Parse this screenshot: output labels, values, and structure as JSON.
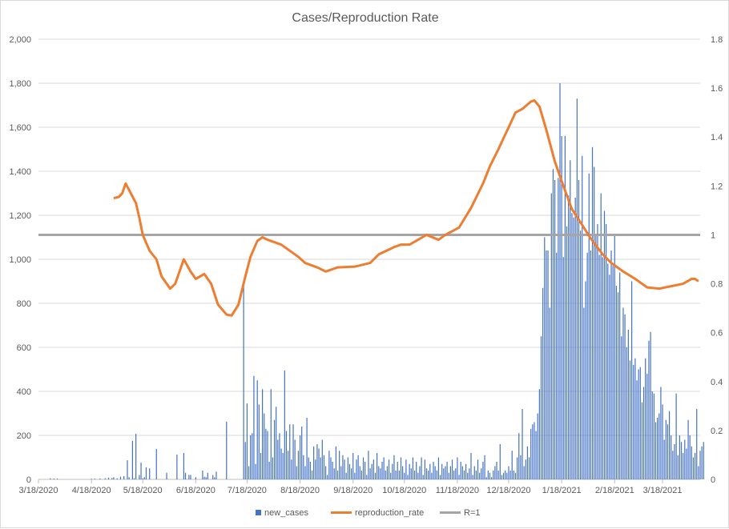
{
  "chart_data": {
    "type": "bar+line",
    "title": "Cases/Reproduction Rate",
    "x_start_date": "3/18/2020",
    "x_unit": "days since 3/18/2020",
    "x_ticks": [
      {
        "day": 0,
        "label": "3/18/2020"
      },
      {
        "day": 31,
        "label": "4/18/2020"
      },
      {
        "day": 61,
        "label": "5/18/2020"
      },
      {
        "day": 92,
        "label": "6/18/2020"
      },
      {
        "day": 122,
        "label": "7/18/2020"
      },
      {
        "day": 153,
        "label": "8/18/2020"
      },
      {
        "day": 184,
        "label": "9/18/2020"
      },
      {
        "day": 214,
        "label": "10/18/2020"
      },
      {
        "day": 245,
        "label": "11/18/2020"
      },
      {
        "day": 275,
        "label": "12/18/2020"
      },
      {
        "day": 306,
        "label": "1/18/2021"
      },
      {
        "day": 337,
        "label": "2/18/2021"
      },
      {
        "day": 365,
        "label": "3/18/2021"
      }
    ],
    "x_range": [
      0,
      387
    ],
    "y_left": {
      "range": [
        0,
        2000
      ],
      "ticks": [
        0,
        200,
        400,
        600,
        800,
        1000,
        1200,
        1400,
        1600,
        1800,
        2000
      ],
      "labels": [
        "0",
        "200",
        "400",
        "600",
        "800",
        "1,000",
        "1,200",
        "1,400",
        "1,600",
        "1,800",
        "2,000"
      ]
    },
    "y_right": {
      "range": [
        0,
        1.8
      ],
      "ticks": [
        0,
        0.2,
        0.4,
        0.6,
        0.8,
        1,
        1.2,
        1.4,
        1.6,
        1.8
      ],
      "labels": [
        "0",
        "0.2",
        "0.4",
        "0.6",
        "0.8",
        "1",
        "1.2",
        "1.4",
        "1.6",
        "1.8"
      ]
    },
    "grid": true,
    "legend_position": "bottom",
    "series": [
      {
        "name": "new_cases",
        "type": "bar",
        "axis": "left",
        "color": "#4472C4",
        "values": [
          0,
          0,
          0,
          0,
          0,
          0,
          0,
          5,
          0,
          4,
          0,
          4,
          0,
          0,
          0,
          0,
          0,
          0,
          0,
          0,
          0,
          0,
          0,
          0,
          0,
          0,
          0,
          0,
          0,
          0,
          0,
          3,
          0,
          3,
          0,
          0,
          4,
          0,
          0,
          5,
          0,
          8,
          0,
          6,
          10,
          0,
          5,
          0,
          12,
          0,
          15,
          0,
          87,
          10,
          0,
          175,
          5,
          207,
          0,
          20,
          76,
          5,
          10,
          55,
          0,
          50,
          0,
          0,
          0,
          138,
          0,
          0,
          0,
          0,
          0,
          30,
          0,
          0,
          0,
          0,
          0,
          113,
          0,
          0,
          0,
          120,
          30,
          0,
          20,
          20,
          0,
          0,
          10,
          0,
          0,
          0,
          40,
          12,
          10,
          30,
          0,
          0,
          20,
          10,
          35,
          0,
          0,
          0,
          0,
          0,
          262,
          0,
          0,
          0,
          0,
          0,
          0,
          0,
          0,
          0,
          880,
          170,
          345,
          60,
          200,
          210,
          470,
          70,
          450,
          340,
          120,
          410,
          300,
          230,
          220,
          80,
          410,
          100,
          270,
          330,
          180,
          210,
          140,
          120,
          495,
          220,
          130,
          250,
          90,
          250,
          180,
          60,
          130,
          200,
          240,
          110,
          60,
          280,
          100,
          80,
          40,
          150,
          90,
          160,
          140,
          100,
          180,
          110,
          60,
          20,
          130,
          100,
          80,
          50,
          150,
          40,
          130,
          60,
          110,
          90,
          30,
          100,
          70,
          50,
          120,
          30,
          90,
          110,
          60,
          40,
          100,
          80,
          20,
          130,
          50,
          70,
          90,
          30,
          120,
          60,
          50,
          80,
          100,
          40,
          60,
          90,
          30,
          70,
          110,
          40,
          80,
          40,
          100,
          60,
          30,
          90,
          20,
          70,
          50,
          100,
          40,
          80,
          30,
          60,
          100,
          20,
          90,
          50,
          40,
          70,
          30,
          80,
          60,
          40,
          100,
          20,
          70,
          50,
          60,
          80,
          30,
          60,
          90,
          40,
          50,
          100,
          20,
          80,
          60,
          40,
          70,
          30,
          50,
          120,
          20,
          60,
          40,
          90,
          30,
          50,
          80,
          110,
          10,
          40,
          30,
          10,
          40,
          60,
          80,
          40,
          160,
          20,
          30,
          40,
          30,
          60,
          40,
          130,
          40,
          30,
          100,
          210,
          110,
          320,
          60,
          90,
          150,
          100,
          230,
          250,
          260,
          220,
          300,
          410,
          650,
          870,
          1100,
          1040,
          1040,
          780,
          1300,
          1410,
          1360,
          1030,
          1370,
          1800,
          1560,
          1010,
          1560,
          1150,
          1290,
          1450,
          1210,
          1190,
          1280,
          1730,
          1360,
          1130,
          1470,
          780,
          900,
          1030,
          1390,
          1040,
          1510,
          1420,
          1110,
          1160,
          1020,
          1300,
          1010,
          1220,
          1160,
          980,
          930,
          1040,
          970,
          1110,
          880,
          850,
          940,
          650,
          780,
          750,
          600,
          680,
          540,
          900,
          520,
          550,
          450,
          500,
          510,
          350,
          420,
          550,
          480,
          630,
          670,
          400,
          390,
          260,
          280,
          300,
          420,
          340,
          180,
          270,
          250,
          310,
          200,
          130,
          160,
          390,
          110,
          200,
          170,
          120,
          180,
          140,
          270,
          200,
          150,
          100,
          120,
          320,
          60,
          130,
          150,
          170
        ]
      },
      {
        "name": "reproduction_rate",
        "type": "line",
        "axis": "right",
        "color": "#ED7D31",
        "points": [
          [
            44,
            1.15
          ],
          [
            47,
            1.155
          ],
          [
            49,
            1.17
          ],
          [
            51,
            1.21
          ],
          [
            54,
            1.17
          ],
          [
            57,
            1.13
          ],
          [
            59,
            1.07
          ],
          [
            61,
            1.0
          ],
          [
            65,
            0.935
          ],
          [
            69,
            0.9
          ],
          [
            72,
            0.83
          ],
          [
            77,
            0.78
          ],
          [
            80,
            0.8
          ],
          [
            85,
            0.9
          ],
          [
            89,
            0.85
          ],
          [
            92,
            0.82
          ],
          [
            97,
            0.84
          ],
          [
            101,
            0.8
          ],
          [
            105,
            0.715
          ],
          [
            110,
            0.674
          ],
          [
            113,
            0.67
          ],
          [
            117,
            0.715
          ],
          [
            121,
            0.83
          ],
          [
            124,
            0.91
          ],
          [
            128,
            0.975
          ],
          [
            131,
            0.99
          ],
          [
            134,
            0.98
          ],
          [
            142,
            0.96
          ],
          [
            147,
            0.935
          ],
          [
            152,
            0.91
          ],
          [
            156,
            0.885
          ],
          [
            163,
            0.867
          ],
          [
            168,
            0.85
          ],
          [
            175,
            0.867
          ],
          [
            185,
            0.87
          ],
          [
            194,
            0.885
          ],
          [
            199,
            0.92
          ],
          [
            208,
            0.95
          ],
          [
            212,
            0.96
          ],
          [
            217,
            0.96
          ],
          [
            227,
            1.0
          ],
          [
            234,
            0.98
          ],
          [
            238,
            1.0
          ],
          [
            246,
            1.03
          ],
          [
            253,
            1.11
          ],
          [
            260,
            1.21
          ],
          [
            264,
            1.28
          ],
          [
            269,
            1.35
          ],
          [
            279,
            1.5
          ],
          [
            283,
            1.515
          ],
          [
            288,
            1.545
          ],
          [
            290,
            1.55
          ],
          [
            293,
            1.525
          ],
          [
            297,
            1.43
          ],
          [
            302,
            1.3
          ],
          [
            307,
            1.2
          ],
          [
            312,
            1.105
          ],
          [
            318,
            1.04
          ],
          [
            323,
            0.985
          ],
          [
            330,
            0.92
          ],
          [
            335,
            0.885
          ],
          [
            342,
            0.85
          ],
          [
            349,
            0.82
          ],
          [
            356,
            0.785
          ],
          [
            363,
            0.78
          ],
          [
            370,
            0.79
          ],
          [
            377,
            0.8
          ],
          [
            382,
            0.82
          ],
          [
            384,
            0.82
          ],
          [
            386,
            0.81
          ]
        ]
      },
      {
        "name": "R=1",
        "type": "line",
        "axis": "right",
        "color": "#A5A5A5",
        "value": 1
      }
    ]
  }
}
